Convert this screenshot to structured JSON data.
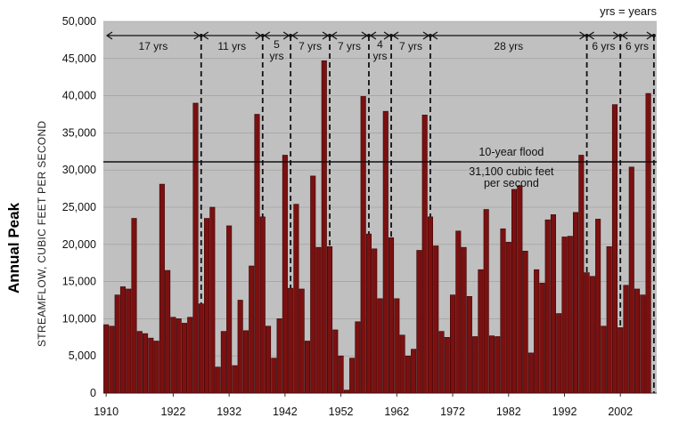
{
  "chart_data": {
    "type": "bar",
    "ylabel_main": "Annual Peak",
    "ylabel_sub": "STREAMFLOW, CUBIC FEET PER SECOND",
    "note": "yrs = years",
    "ylim": [
      0,
      50000
    ],
    "y_ticks": [
      "0",
      "5,000",
      "10,000",
      "15,000",
      "20,000",
      "25,000",
      "30,000",
      "35,000",
      "40,000",
      "45,000",
      "50,000"
    ],
    "x_ticks": [
      "1910",
      "1922",
      "1932",
      "1942",
      "1952",
      "1962",
      "1972",
      "1982",
      "1992",
      "2002"
    ],
    "x_tick_years": [
      1910,
      1922,
      1932,
      1942,
      1952,
      1962,
      1972,
      1982,
      1992,
      2002
    ],
    "xlim": [
      1910,
      2009
    ],
    "start_year": 1910,
    "values": [
      9200,
      9000,
      13200,
      14300,
      14000,
      23500,
      8300,
      8000,
      7400,
      7000,
      28100,
      16500,
      10200,
      10000,
      9400,
      10200,
      39000,
      12000,
      23500,
      25000,
      3500,
      8300,
      22500,
      3700,
      12500,
      8400,
      17100,
      37500,
      23700,
      9000,
      4700,
      10000,
      32000,
      14100,
      25400,
      14000,
      7000,
      29200,
      19600,
      44700,
      19700,
      8500,
      5000,
      400,
      4700,
      9600,
      39900,
      21400,
      19400,
      12700,
      37900,
      20900,
      12700,
      7800,
      5000,
      5900,
      19200,
      37400,
      23700,
      19800,
      8300,
      7500,
      13200,
      21800,
      19600,
      13000,
      7600,
      16600,
      24700,
      7700,
      7600,
      22100,
      20300,
      27400,
      27900,
      19100,
      5400,
      16600,
      14800,
      23300,
      24000,
      10700,
      21000,
      21100,
      24300,
      32000,
      16200,
      15700,
      23400,
      9000,
      19700,
      38800,
      8800,
      14500,
      30400,
      14000,
      13200,
      40300
    ],
    "bar_color": "#7b1010",
    "background_color": "#c0c0c0",
    "flood_line": {
      "value": 31100,
      "label1": "10-year flood",
      "label2": "31,100 cubic feet",
      "label3": "per second"
    },
    "interval_markers": [
      1910,
      1927,
      1938,
      1943,
      1950,
      1957,
      1961,
      1968,
      1996,
      2002,
      2008
    ],
    "intervals": [
      "17 yrs",
      "11 yrs",
      "5 yrs",
      "7 yrs",
      "7 yrs",
      "4 yrs",
      "7 yrs",
      "28 yrs",
      "6 yrs",
      "6 yrs"
    ]
  }
}
